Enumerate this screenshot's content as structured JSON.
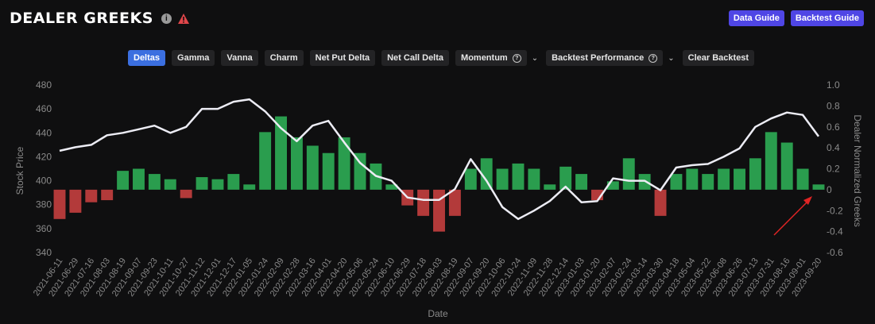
{
  "header": {
    "title": "DEALER GREEKS",
    "info_icon": "i",
    "warning_icon": "warning-triangle",
    "data_guide": "Data Guide",
    "backtest_guide": "Backtest Guide"
  },
  "toolbar": {
    "deltas": "Deltas",
    "gamma": "Gamma",
    "vanna": "Vanna",
    "charm": "Charm",
    "net_put_delta": "Net Put Delta",
    "net_call_delta": "Net Call Delta",
    "momentum": "Momentum",
    "backtest_performance": "Backtest Performance",
    "clear_backtest": "Clear Backtest",
    "help_icon": "?"
  },
  "colors": {
    "accent": "#3b6fe0",
    "guide_button": "#4f46e5",
    "positive_bar": "#2a9d4e",
    "negative_bar": "#b33a3a",
    "price_line": "#ececf4",
    "annotation_arrow": "#e02424"
  },
  "chart_data": {
    "type": "bar",
    "xlabel": "Date",
    "ylabel": "Stock Price",
    "y2label": "Dealer Normalized Greeks",
    "ylim": [
      340,
      480
    ],
    "y2lim": [
      -0.6,
      1.0
    ],
    "y_ticks": [
      340,
      360,
      380,
      400,
      420,
      440,
      460,
      480
    ],
    "y2_ticks": [
      -0.6,
      -0.4,
      -0.2,
      0,
      0.2,
      0.4,
      0.6,
      0.8,
      1.0
    ],
    "x_ticks": [
      "2021-06-11",
      "2021-06-29",
      "2021-07-16",
      "2021-08-03",
      "2021-08-19",
      "2021-09-07",
      "2021-09-23",
      "2021-10-11",
      "2021-10-27",
      "2021-11-12",
      "2021-12-01",
      "2021-12-17",
      "2022-01-05",
      "2022-01-24",
      "2022-02-09",
      "2022-02-28",
      "2022-03-16",
      "2022-04-01",
      "2022-04-20",
      "2022-05-06",
      "2022-05-24",
      "2022-06-10",
      "2022-06-29",
      "2022-07-18",
      "2022-08-03",
      "2022-08-19",
      "2022-09-07",
      "2022-09-20",
      "2022-10-06",
      "2022-10-24",
      "2022-11-09",
      "2022-11-28",
      "2022-12-14",
      "2023-01-03",
      "2023-01-20",
      "2023-02-07",
      "2023-02-24",
      "2023-03-14",
      "2023-03-30",
      "2023-04-18",
      "2023-05-04",
      "2023-05-22",
      "2023-06-08",
      "2023-06-26",
      "2023-07-13",
      "2023-07-31",
      "2023-08-16",
      "2023-09-01",
      "2023-09-20"
    ],
    "legend": "none",
    "annotation": "red arrow pointing to latest bars",
    "series": [
      {
        "type": "line",
        "axis": "left",
        "x": [
          "2021-06-11",
          "2021-06-29",
          "2021-07-16",
          "2021-08-03",
          "2021-08-19",
          "2021-09-07",
          "2021-09-23",
          "2021-10-11",
          "2021-10-27",
          "2021-11-12",
          "2021-12-01",
          "2021-12-17",
          "2022-01-05",
          "2022-01-24",
          "2022-02-09",
          "2022-02-28",
          "2022-03-16",
          "2022-04-01",
          "2022-04-20",
          "2022-05-06",
          "2022-05-24",
          "2022-06-10",
          "2022-06-29",
          "2022-07-18",
          "2022-08-03",
          "2022-08-19",
          "2022-09-07",
          "2022-09-20",
          "2022-10-06",
          "2022-10-24",
          "2022-11-09",
          "2022-11-28",
          "2022-12-14",
          "2023-01-03",
          "2023-01-20",
          "2023-02-07",
          "2023-02-24",
          "2023-03-14",
          "2023-03-30",
          "2023-04-18",
          "2023-05-04",
          "2023-05-22",
          "2023-06-08",
          "2023-06-26",
          "2023-07-13",
          "2023-07-31",
          "2023-08-16",
          "2023-09-01",
          "2023-09-20"
        ],
        "values": [
          425,
          428,
          430,
          438,
          440,
          443,
          446,
          440,
          445,
          460,
          460,
          466,
          468,
          458,
          444,
          433,
          446,
          450,
          432,
          415,
          404,
          400,
          386,
          384,
          384,
          393,
          418,
          400,
          378,
          368,
          375,
          383,
          395,
          382,
          383,
          402,
          400,
          400,
          392,
          411,
          413,
          414,
          420,
          427,
          445,
          452,
          457,
          455,
          437
        ]
      },
      {
        "type": "bar",
        "axis": "right",
        "x": [
          "2021-06-11",
          "2021-06-29",
          "2021-07-16",
          "2021-08-03",
          "2021-08-19",
          "2021-09-07",
          "2021-09-23",
          "2021-10-11",
          "2021-10-27",
          "2021-11-12",
          "2021-12-01",
          "2021-12-17",
          "2022-01-05",
          "2022-01-24",
          "2022-02-09",
          "2022-02-28",
          "2022-03-16",
          "2022-04-01",
          "2022-04-20",
          "2022-05-06",
          "2022-05-24",
          "2022-06-10",
          "2022-06-29",
          "2022-07-18",
          "2022-08-03",
          "2022-08-19",
          "2022-09-07",
          "2022-09-20",
          "2022-10-06",
          "2022-10-24",
          "2022-11-09",
          "2022-11-28",
          "2022-12-14",
          "2023-01-03",
          "2023-01-20",
          "2023-02-07",
          "2023-02-24",
          "2023-03-14",
          "2023-03-30",
          "2023-04-18",
          "2023-05-04",
          "2023-05-22",
          "2023-06-08",
          "2023-06-26",
          "2023-07-13",
          "2023-07-31",
          "2023-08-16",
          "2023-09-01",
          "2023-09-20"
        ],
        "values": [
          -0.28,
          -0.22,
          -0.12,
          -0.1,
          0.18,
          0.2,
          0.15,
          0.1,
          -0.08,
          0.12,
          0.1,
          0.15,
          0.05,
          0.55,
          0.7,
          0.5,
          0.42,
          0.35,
          0.5,
          0.35,
          0.25,
          0.05,
          -0.15,
          -0.25,
          -0.4,
          -0.25,
          0.2,
          0.3,
          0.2,
          0.25,
          0.2,
          0.05,
          0.22,
          0.15,
          -0.1,
          0.08,
          0.3,
          0.15,
          -0.25,
          0.15,
          0.2,
          0.15,
          0.2,
          0.2,
          0.3,
          0.55,
          0.45,
          0.2,
          0.05
        ]
      }
    ]
  }
}
